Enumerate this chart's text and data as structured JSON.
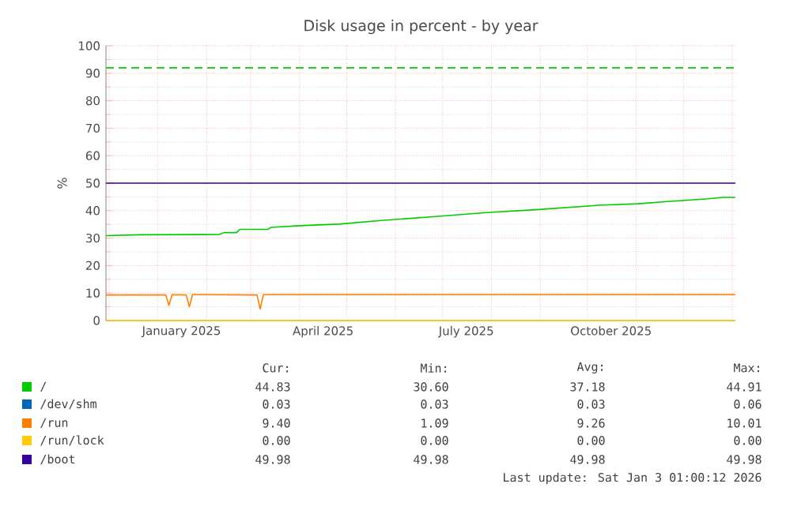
{
  "chart_data": {
    "type": "line",
    "title": "Disk usage in percent - by year",
    "ylabel": "%",
    "xlim": [
      "2024-11-29",
      "2026-01-03"
    ],
    "xticks": [
      {
        "value": "2024-12-01",
        "label": null
      },
      {
        "value": "2025-01-01",
        "label": null
      },
      {
        "value": "2025-01-16",
        "label": "January 2025"
      },
      {
        "value": "2025-02-01",
        "label": null
      },
      {
        "value": "2025-03-01",
        "label": null
      },
      {
        "value": "2025-04-01",
        "label": null
      },
      {
        "value": "2025-04-16",
        "label": "April 2025"
      },
      {
        "value": "2025-05-01",
        "label": null
      },
      {
        "value": "2025-06-01",
        "label": null
      },
      {
        "value": "2025-07-01",
        "label": null
      },
      {
        "value": "2025-07-16",
        "label": "July 2025"
      },
      {
        "value": "2025-08-01",
        "label": null
      },
      {
        "value": "2025-09-01",
        "label": null
      },
      {
        "value": "2025-10-01",
        "label": null
      },
      {
        "value": "2025-10-16",
        "label": "October 2025"
      },
      {
        "value": "2025-11-01",
        "label": null
      },
      {
        "value": "2025-12-01",
        "label": null
      },
      {
        "value": "2026-01-01",
        "label": null
      }
    ],
    "ylim": [
      0,
      100
    ],
    "yticks": [
      0,
      10,
      20,
      30,
      40,
      50,
      60,
      70,
      80,
      90,
      100
    ],
    "grid": true,
    "legend": "bottom",
    "marker": "none",
    "line_style": "solid",
    "series": [
      {
        "name": "/",
        "color": "#00cc00",
        "x": [
          "2024-11-29",
          "2024-12-20",
          "2025-02-09",
          "2025-02-12",
          "2025-02-20",
          "2025-02-22",
          "2025-03-12",
          "2025-03-14",
          "2025-04-01",
          "2025-04-26",
          "2025-05-23",
          "2025-06-25",
          "2025-07-29",
          "2025-08-31",
          "2025-10-10",
          "2025-11-02",
          "2025-11-21",
          "2025-12-17",
          "2025-12-26",
          "2026-01-03"
        ],
        "values": [
          30.9,
          31.2,
          31.3,
          32.0,
          32.0,
          33.2,
          33.2,
          33.9,
          34.5,
          35.1,
          36.4,
          37.8,
          39.3,
          40.4,
          42.0,
          42.5,
          43.3,
          44.3,
          44.8,
          44.8
        ]
      },
      {
        "name": "/dev/shm",
        "color": "#0066b3"
      },
      {
        "name": "/run",
        "color": "#ff8000",
        "x": [
          "2024-11-29",
          "2025-01-06",
          "2025-01-08",
          "2025-01-10",
          "2025-01-19",
          "2025-01-21",
          "2025-01-23",
          "2025-03-05",
          "2025-03-07",
          "2025-03-09",
          "2026-01-03"
        ],
        "values": [
          9.3,
          9.3,
          5.5,
          9.4,
          9.3,
          5.0,
          9.4,
          9.3,
          4.2,
          9.4,
          9.4
        ]
      },
      {
        "name": "/run/lock",
        "color": "#ffcc00",
        "x": [
          "2024-11-29",
          "2026-01-03"
        ],
        "values": [
          0.0,
          0.0
        ]
      },
      {
        "name": "/boot",
        "color": "#330099",
        "x": [
          "2024-11-29",
          "2026-01-03"
        ],
        "values": [
          50,
          50
        ]
      }
    ],
    "ref_lines": [
      {
        "axis": "y",
        "value": 92,
        "color": "#00cc00",
        "line_style": "dashed"
      }
    ],
    "annotations": [
      "Cur:",
      "Min:",
      "Avg:",
      "Max:",
      "44.83",
      "30.60",
      "37.18",
      "44.91",
      "0.03",
      "0.03",
      "0.03",
      "0.06",
      "9.40",
      "1.09",
      "9.26",
      "10.01",
      "0.00",
      "0.00",
      "0.00",
      "0.00",
      "49.98",
      "49.98",
      "49.98",
      "49.98",
      "Last update: Sat Jan  3 01:00:12 2026"
    ]
  }
}
